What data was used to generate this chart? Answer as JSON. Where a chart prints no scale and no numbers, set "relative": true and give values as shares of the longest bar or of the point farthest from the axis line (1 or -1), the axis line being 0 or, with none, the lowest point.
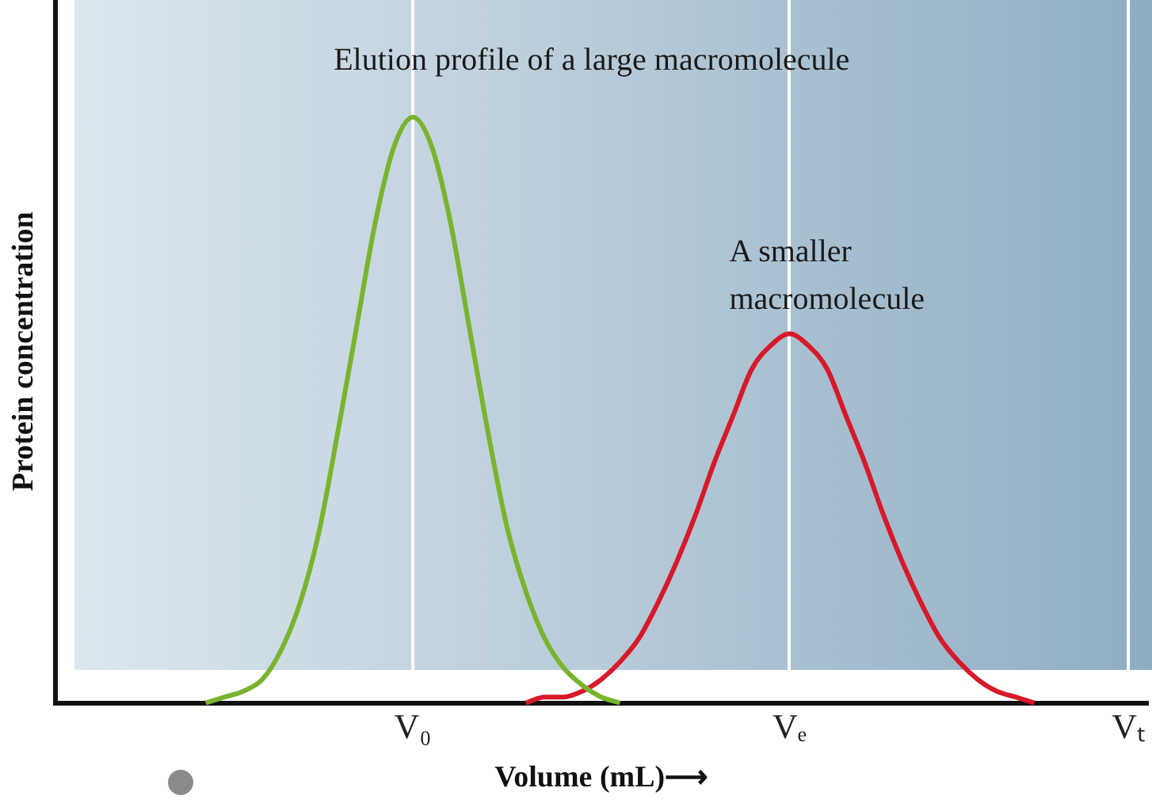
{
  "chart_data": {
    "type": "line",
    "relative": true,
    "xlabel": "Volume (mL)⟶",
    "ylabel": "Protein concentration",
    "categories": [
      null,
      null,
      null,
      null,
      null,
      null,
      null,
      null,
      null,
      null,
      null,
      null,
      null,
      null,
      null,
      null,
      null,
      null,
      null,
      "V₀",
      null,
      null,
      null,
      null,
      null,
      null,
      null,
      null,
      null,
      null,
      null,
      null,
      null,
      null,
      null,
      null,
      null,
      null,
      null,
      "Vₑ",
      null,
      null,
      null,
      null,
      null,
      null,
      null,
      null,
      null,
      null,
      null,
      null,
      null,
      null,
      null,
      null,
      null,
      "Vₜ",
      null
    ],
    "grid": "x",
    "legend": false,
    "marker": "none",
    "line_style": "solid",
    "series": [
      {
        "name": "Elution profile of a large macromolecule",
        "color": "#7ab32e",
        "values": [
          null,
          null,
          null,
          null,
          null,
          null,
          null,
          null,
          0,
          0.01,
          0.02,
          0.04,
          0.09,
          0.17,
          0.29,
          0.46,
          0.64,
          0.82,
          0.95,
          1,
          0.95,
          0.82,
          0.64,
          0.46,
          0.3,
          0.19,
          0.11,
          0.06,
          0.03,
          0.01,
          0,
          null,
          null,
          null,
          null,
          null,
          null,
          null,
          null,
          null,
          null,
          null,
          null,
          null,
          null,
          null,
          null,
          null,
          null,
          null,
          null,
          null,
          null,
          null,
          null,
          null,
          null,
          null,
          null
        ]
      },
      {
        "name": "A smaller macromolecule",
        "color": "#d7192a",
        "values": [
          null,
          null,
          null,
          null,
          null,
          null,
          null,
          null,
          null,
          null,
          null,
          null,
          null,
          null,
          null,
          null,
          null,
          null,
          null,
          null,
          null,
          null,
          null,
          null,
          null,
          0,
          0.01,
          0.01,
          0.02,
          0.04,
          0.07,
          0.11,
          0.17,
          0.24,
          0.32,
          0.41,
          0.49,
          0.57,
          0.61,
          0.63,
          0.61,
          0.57,
          0.49,
          0.41,
          0.32,
          0.24,
          0.17,
          0.11,
          0.07,
          0.04,
          0.02,
          0.01,
          0,
          null,
          null,
          null,
          null,
          null,
          null
        ]
      }
    ]
  }
}
